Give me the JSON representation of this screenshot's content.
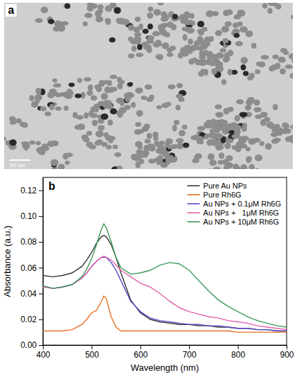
{
  "image_panel": {
    "label": "a",
    "scale_bar": "50 nm"
  },
  "chart_data": {
    "type": "line",
    "panel_label": "b",
    "x_label": "Wavelength (nm)",
    "y_label": "Absorbance (a.u.)",
    "xlim": [
      400,
      900
    ],
    "xticks": [
      400,
      500,
      600,
      700,
      800,
      900
    ],
    "ylim": [
      0,
      0.13
    ],
    "yticks": [
      {
        "value": 0,
        "label": "0.00"
      },
      {
        "value": 0.02,
        "label": "0.02"
      },
      {
        "value": 0.04,
        "label": "0.04"
      },
      {
        "value": 0.06,
        "label": "0.06"
      },
      {
        "value": 0.08,
        "label": "0.08"
      },
      {
        "value": 0.1,
        "label": "0.10"
      },
      {
        "value": 0.12,
        "label": "0.12"
      }
    ],
    "grid": false,
    "legend": "upper right",
    "x": [
      400,
      420,
      440,
      460,
      480,
      490,
      500,
      510,
      520,
      525,
      530,
      540,
      550,
      560,
      580,
      600,
      620,
      640,
      660,
      680,
      700,
      720,
      740,
      760,
      780,
      800,
      820,
      840,
      860,
      880,
      900
    ],
    "series": [
      {
        "name": "Pure Au NPs",
        "color": "#333333",
        "values": [
          0.054,
          0.053,
          0.054,
          0.056,
          0.061,
          0.066,
          0.072,
          0.079,
          0.084,
          0.085,
          0.084,
          0.078,
          0.068,
          0.056,
          0.035,
          0.025,
          0.02,
          0.018,
          0.017,
          0.016,
          0.016,
          0.015,
          0.015,
          0.014,
          0.014,
          0.013,
          0.013,
          0.012,
          0.012,
          0.011,
          0.011
        ]
      },
      {
        "name": "Pure Rh6G",
        "color": "#e8701e",
        "values": [
          0.011,
          0.011,
          0.011,
          0.012,
          0.016,
          0.02,
          0.025,
          0.027,
          0.034,
          0.038,
          0.036,
          0.022,
          0.014,
          0.011,
          0.011,
          0.011,
          0.011,
          0.011,
          0.011,
          0.011,
          0.011,
          0.011,
          0.011,
          0.011,
          0.011,
          0.01,
          0.01,
          0.01,
          0.01,
          0.01,
          0.01
        ]
      },
      {
        "name": "Au NPs + 0.1μM Rh6G",
        "color": "#5848c8",
        "values": [
          0.046,
          0.044,
          0.045,
          0.047,
          0.052,
          0.056,
          0.061,
          0.065,
          0.068,
          0.068,
          0.068,
          0.064,
          0.058,
          0.05,
          0.034,
          0.026,
          0.021,
          0.019,
          0.018,
          0.017,
          0.016,
          0.016,
          0.015,
          0.015,
          0.014,
          0.013,
          0.013,
          0.012,
          0.012,
          0.011,
          0.011
        ]
      },
      {
        "name": "Au NPs +   1μM Rh6G",
        "color": "#e060a8",
        "values": [
          0.045,
          0.044,
          0.045,
          0.047,
          0.052,
          0.056,
          0.061,
          0.065,
          0.068,
          0.069,
          0.068,
          0.066,
          0.062,
          0.058,
          0.053,
          0.048,
          0.045,
          0.04,
          0.034,
          0.029,
          0.026,
          0.024,
          0.022,
          0.021,
          0.019,
          0.018,
          0.017,
          0.015,
          0.014,
          0.013,
          0.012
        ]
      },
      {
        "name": "Au NPs + 10μM Rh6G",
        "color": "#3a9a58",
        "values": [
          0.046,
          0.044,
          0.045,
          0.047,
          0.053,
          0.059,
          0.067,
          0.078,
          0.09,
          0.094,
          0.091,
          0.08,
          0.068,
          0.06,
          0.055,
          0.056,
          0.058,
          0.062,
          0.064,
          0.063,
          0.058,
          0.05,
          0.042,
          0.035,
          0.03,
          0.026,
          0.022,
          0.019,
          0.017,
          0.015,
          0.014
        ]
      }
    ]
  }
}
